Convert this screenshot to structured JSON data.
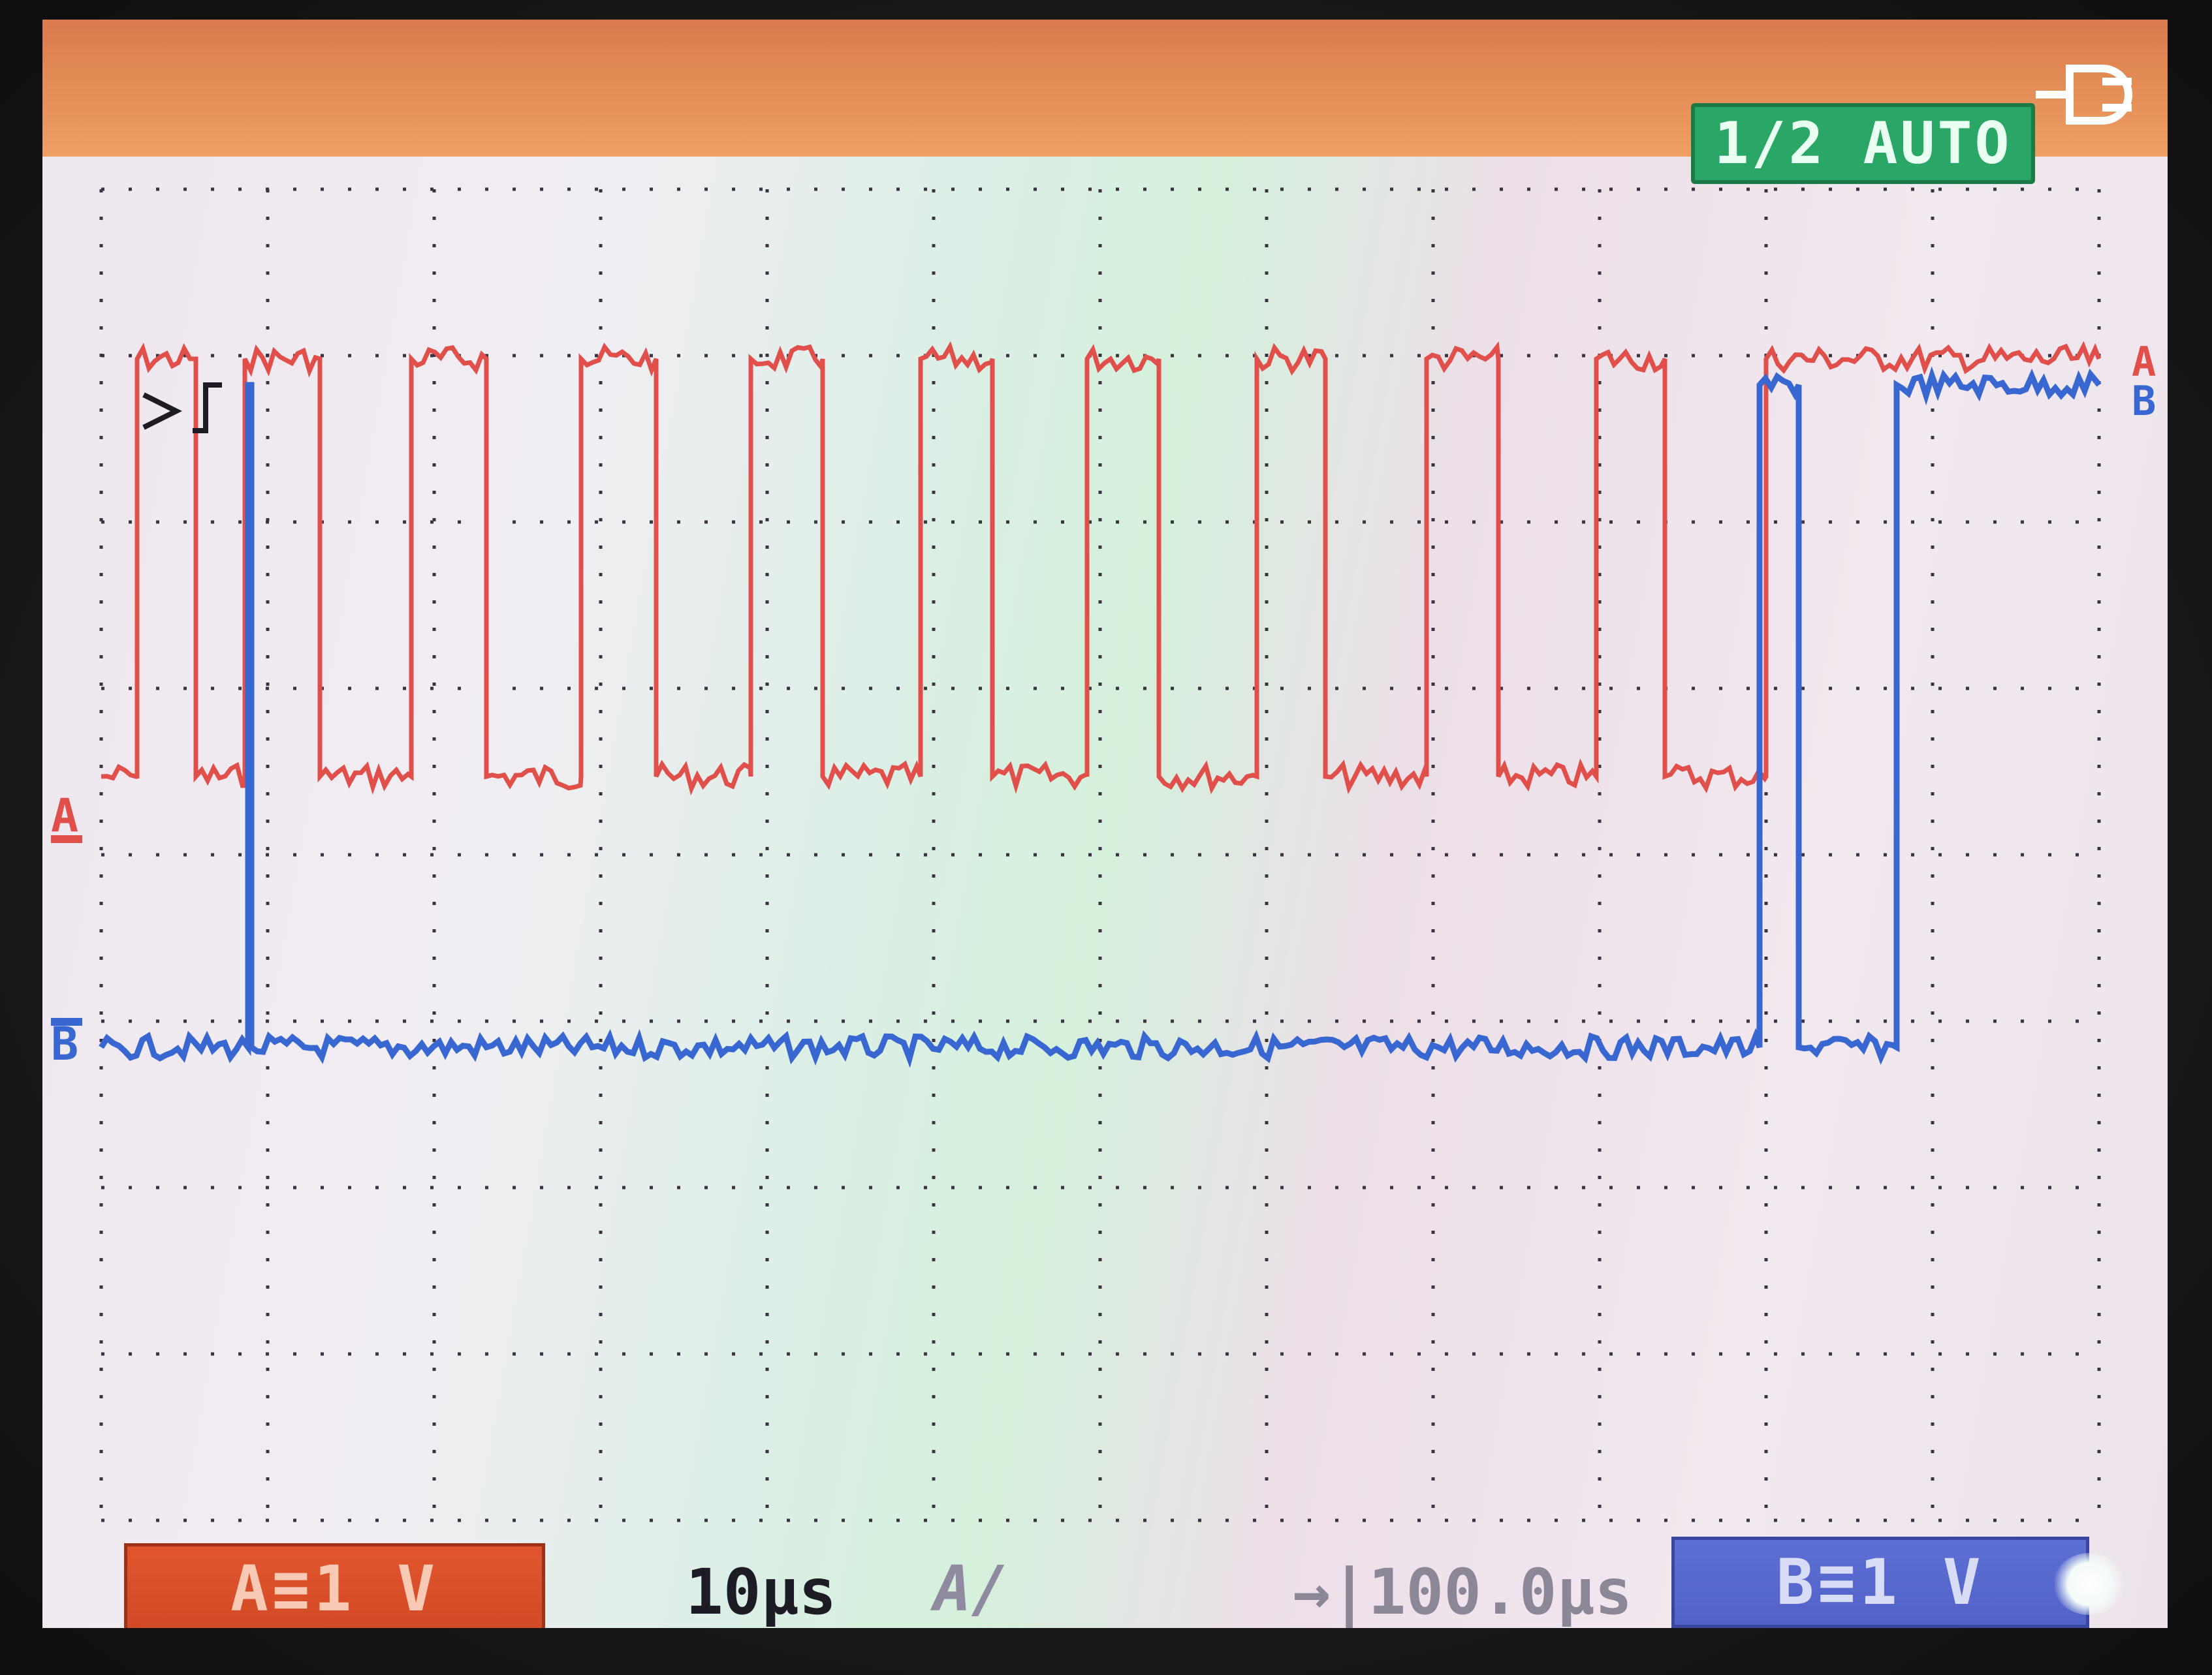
{
  "header": {
    "mode": "1/2 AUTO",
    "power_icon": "ac-plug-icon"
  },
  "channels": {
    "a": {
      "label": "A",
      "color": "#e04f4a",
      "scale": "A≡1 V"
    },
    "b": {
      "label": "B",
      "color": "#3867d2",
      "scale": "B≡1 V"
    }
  },
  "footer": {
    "timebase": "10µs",
    "trigger_coupling": "A/",
    "trigger_position": "→|100.0µs"
  },
  "colors": {
    "top_bar": "#e58f58",
    "mode_badge": "#2aa766",
    "grid": "#3a3440",
    "trace_a": "#e04f4a",
    "trace_b": "#3867d2"
  },
  "grid": {
    "horizontal_divisions": 12,
    "vertical_divisions": 8
  }
}
